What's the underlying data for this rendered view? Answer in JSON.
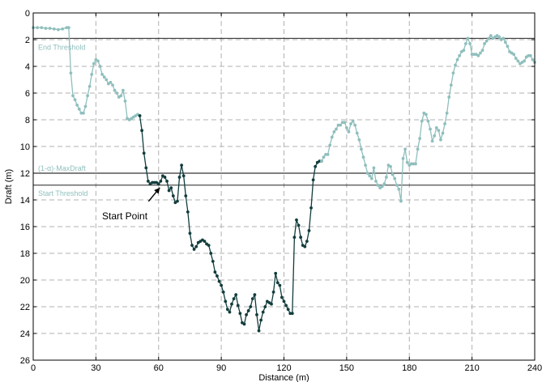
{
  "chart_data": {
    "type": "line",
    "xlabel": "Distance (m)",
    "ylabel": "Draft (m)",
    "xlim": [
      0,
      240
    ],
    "ylim": [
      0,
      26
    ],
    "y_inverted": true,
    "grid": true,
    "x_ticks": [
      "0",
      "30",
      "60",
      "90",
      "120",
      "150",
      "180",
      "210",
      "240"
    ],
    "y_ticks": [
      "0",
      "2",
      "4",
      "6",
      "8",
      "10",
      "12",
      "14",
      "16",
      "18",
      "20",
      "22",
      "24",
      "26"
    ],
    "thresholds": [
      {
        "label": "End Threshold",
        "y": 1.9
      },
      {
        "label": "(1-α)·MaxDraft",
        "y": 12.0
      },
      {
        "label": "Start Threshold",
        "y": 12.9
      }
    ],
    "annotation": {
      "text": "Start Point",
      "x": 61,
      "y": 12.9
    },
    "series": [
      {
        "color": "#8fbfbd",
        "points": [
          [
            0,
            1.1
          ],
          [
            2,
            1.1
          ],
          [
            4,
            1.1
          ],
          [
            6,
            1.15
          ],
          [
            8,
            1.15
          ],
          [
            10,
            1.2
          ],
          [
            12,
            1.25
          ],
          [
            14,
            1.2
          ],
          [
            16,
            1.1
          ],
          [
            17,
            1.1
          ],
          [
            18,
            4.5
          ],
          [
            19,
            6.2
          ],
          [
            20,
            6.5
          ],
          [
            21,
            6.9
          ],
          [
            22,
            7.2
          ],
          [
            23,
            7.5
          ],
          [
            24,
            7.5
          ],
          [
            25,
            7.0
          ],
          [
            26,
            6.2
          ],
          [
            27,
            5.5
          ],
          [
            28,
            4.6
          ],
          [
            29,
            3.8
          ],
          [
            30,
            3.5
          ],
          [
            31,
            3.6
          ],
          [
            32,
            4.0
          ],
          [
            33,
            4.6
          ],
          [
            34,
            4.8
          ],
          [
            35,
            5.0
          ],
          [
            36,
            5.3
          ],
          [
            37,
            5.2
          ],
          [
            38,
            5.4
          ],
          [
            39,
            5.8
          ],
          [
            40,
            6.0
          ],
          [
            41,
            6.3
          ],
          [
            42,
            6.2
          ],
          [
            43,
            5.8
          ],
          [
            44,
            6.6
          ],
          [
            45,
            7.9
          ],
          [
            46,
            8.0
          ],
          [
            47,
            7.9
          ],
          [
            48,
            7.8
          ],
          [
            49,
            7.7
          ],
          [
            50,
            7.6
          ],
          [
            51,
            7.7
          ]
        ]
      },
      {
        "color": "#123c3c",
        "points": [
          [
            51,
            7.7
          ],
          [
            52,
            8.8
          ],
          [
            53,
            10.5
          ],
          [
            54,
            11.6
          ],
          [
            55,
            12.6
          ],
          [
            56,
            12.8
          ],
          [
            57,
            12.7
          ],
          [
            58,
            12.7
          ],
          [
            59,
            12.7
          ],
          [
            60,
            12.8
          ],
          [
            61,
            12.6
          ],
          [
            62,
            12.2
          ],
          [
            63,
            12.3
          ],
          [
            64,
            12.6
          ],
          [
            65,
            13.3
          ],
          [
            66,
            13.1
          ],
          [
            67,
            13.7
          ],
          [
            68,
            14.2
          ],
          [
            69,
            14.1
          ],
          [
            70,
            12.3
          ],
          [
            71,
            11.4
          ],
          [
            72,
            12.2
          ],
          [
            73,
            13.7
          ],
          [
            74,
            14.9
          ],
          [
            75,
            16.5
          ],
          [
            76,
            17.4
          ],
          [
            77,
            17.7
          ],
          [
            78,
            17.5
          ],
          [
            79,
            17.2
          ],
          [
            80,
            17.1
          ],
          [
            81,
            17.0
          ],
          [
            82,
            17.1
          ],
          [
            83,
            17.3
          ],
          [
            84,
            17.4
          ],
          [
            85,
            18.0
          ],
          [
            86,
            18.6
          ],
          [
            87,
            19.4
          ],
          [
            88,
            19.7
          ],
          [
            89,
            20.1
          ],
          [
            90,
            20.4
          ],
          [
            91,
            20.9
          ],
          [
            92,
            21.6
          ],
          [
            93,
            22.2
          ],
          [
            94,
            22.4
          ],
          [
            95,
            21.8
          ],
          [
            96,
            21.4
          ],
          [
            97,
            21.1
          ],
          [
            98,
            21.9
          ],
          [
            99,
            22.5
          ],
          [
            100,
            23.2
          ],
          [
            101,
            23.3
          ],
          [
            102,
            22.6
          ],
          [
            103,
            22.3
          ],
          [
            104,
            22.0
          ],
          [
            105,
            21.4
          ],
          [
            106,
            21.1
          ],
          [
            107,
            22.6
          ],
          [
            108,
            23.8
          ],
          [
            109,
            23.0
          ],
          [
            110,
            22.4
          ],
          [
            111,
            22.0
          ],
          [
            112,
            21.6
          ],
          [
            113,
            21.7
          ],
          [
            114,
            21.8
          ],
          [
            115,
            20.9
          ],
          [
            116,
            19.5
          ],
          [
            117,
            20.2
          ],
          [
            118,
            20.4
          ],
          [
            119,
            21.3
          ],
          [
            120,
            21.6
          ],
          [
            121,
            21.9
          ],
          [
            122,
            22.2
          ],
          [
            123,
            22.5
          ],
          [
            124,
            22.5
          ],
          [
            125,
            16.8
          ],
          [
            126,
            15.5
          ],
          [
            127,
            15.9
          ],
          [
            128,
            16.8
          ],
          [
            129,
            17.4
          ],
          [
            130,
            17.5
          ],
          [
            131,
            17.1
          ],
          [
            132,
            16.3
          ],
          [
            133,
            14.6
          ],
          [
            134,
            12.5
          ],
          [
            135,
            11.5
          ],
          [
            136,
            11.2
          ],
          [
            137,
            11.1
          ],
          [
            138,
            11.1
          ]
        ]
      },
      {
        "color": "#8fbfbd",
        "points": [
          [
            138,
            11.1
          ],
          [
            139,
            10.8
          ],
          [
            140,
            10.6
          ],
          [
            141,
            10.6
          ],
          [
            142,
            9.9
          ],
          [
            143,
            9.3
          ],
          [
            144,
            8.9
          ],
          [
            145,
            8.7
          ],
          [
            146,
            8.4
          ],
          [
            147,
            8.4
          ],
          [
            148,
            8.2
          ],
          [
            149,
            8.2
          ],
          [
            150,
            8.6
          ],
          [
            151,
            8.9
          ],
          [
            152,
            8.3
          ],
          [
            153,
            8.1
          ],
          [
            154,
            8.4
          ],
          [
            155,
            9.0
          ],
          [
            156,
            9.5
          ],
          [
            157,
            10.2
          ],
          [
            158,
            10.8
          ],
          [
            159,
            11.4
          ],
          [
            160,
            12.0
          ],
          [
            161,
            12.2
          ],
          [
            162,
            12.4
          ],
          [
            163,
            11.6
          ],
          [
            164,
            12.6
          ],
          [
            165,
            12.9
          ],
          [
            166,
            13.1
          ],
          [
            167,
            13.0
          ],
          [
            168,
            12.8
          ],
          [
            169,
            12.3
          ],
          [
            170,
            11.4
          ],
          [
            171,
            11.5
          ],
          [
            172,
            12.1
          ],
          [
            173,
            12.4
          ],
          [
            174,
            12.9
          ],
          [
            175,
            13.2
          ],
          [
            176,
            14.1
          ],
          [
            177,
            10.9
          ],
          [
            178,
            10.2
          ],
          [
            179,
            11.2
          ],
          [
            180,
            11.4
          ],
          [
            181,
            11.3
          ],
          [
            182,
            11.3
          ],
          [
            183,
            11.3
          ],
          [
            184,
            10.2
          ],
          [
            185,
            9.4
          ],
          [
            186,
            8.1
          ],
          [
            187,
            7.5
          ],
          [
            188,
            7.6
          ],
          [
            189,
            8.1
          ],
          [
            190,
            8.7
          ],
          [
            191,
            9.6
          ],
          [
            192,
            9.2
          ],
          [
            193,
            8.6
          ],
          [
            194,
            8.8
          ],
          [
            195,
            9.5
          ],
          [
            196,
            9.0
          ],
          [
            197,
            8.3
          ],
          [
            198,
            7.5
          ],
          [
            199,
            6.3
          ],
          [
            200,
            5.4
          ],
          [
            201,
            4.5
          ],
          [
            202,
            3.9
          ],
          [
            203,
            3.5
          ],
          [
            204,
            3.2
          ],
          [
            205,
            2.9
          ],
          [
            206,
            2.8
          ],
          [
            207,
            2.3
          ],
          [
            208,
            1.9
          ],
          [
            209,
            2.3
          ],
          [
            210,
            3.1
          ],
          [
            211,
            3.1
          ],
          [
            212,
            3.1
          ],
          [
            213,
            3.2
          ],
          [
            214,
            3.0
          ],
          [
            215,
            2.8
          ],
          [
            216,
            2.3
          ],
          [
            217,
            2.1
          ],
          [
            218,
            1.9
          ],
          [
            219,
            1.7
          ],
          [
            220,
            1.9
          ],
          [
            221,
            1.8
          ],
          [
            222,
            1.7
          ],
          [
            223,
            1.8
          ],
          [
            224,
            2.0
          ],
          [
            225,
            1.9
          ],
          [
            226,
            2.2
          ],
          [
            227,
            2.5
          ],
          [
            228,
            2.9
          ],
          [
            229,
            3.0
          ],
          [
            230,
            3.1
          ],
          [
            231,
            3.4
          ],
          [
            232,
            3.6
          ],
          [
            233,
            3.8
          ],
          [
            234,
            3.7
          ],
          [
            235,
            3.6
          ],
          [
            236,
            3.3
          ],
          [
            237,
            3.2
          ],
          [
            238,
            3.2
          ],
          [
            239,
            3.5
          ],
          [
            240,
            3.7
          ]
        ]
      }
    ],
    "colors": {
      "light_series": "#8fbfbd",
      "dark_series": "#123c3c",
      "threshold_line": "#000000",
      "grid": "#b0b0b0"
    }
  }
}
